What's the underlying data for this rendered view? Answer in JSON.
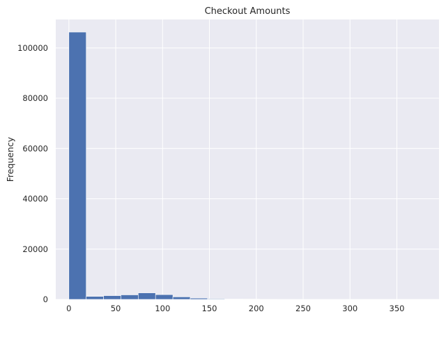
{
  "chart_data": {
    "type": "bar",
    "title": "Checkout Amounts",
    "xlabel": "",
    "ylabel": "Frequency",
    "grid": true,
    "xlim": [
      -14,
      395
    ],
    "ylim": [
      0,
      111300
    ],
    "xticks": [
      0,
      50,
      100,
      150,
      200,
      250,
      300,
      350
    ],
    "yticks": [
      0,
      20000,
      40000,
      60000,
      80000,
      100000
    ],
    "bins": [
      {
        "x0": 0,
        "x1": 18.5,
        "value": 106300
      },
      {
        "x0": 18.5,
        "x1": 37,
        "value": 1200
      },
      {
        "x0": 37,
        "x1": 55.5,
        "value": 1500
      },
      {
        "x0": 55.5,
        "x1": 74,
        "value": 1800
      },
      {
        "x0": 74,
        "x1": 92.5,
        "value": 2600
      },
      {
        "x0": 92.5,
        "x1": 111,
        "value": 1900
      },
      {
        "x0": 111,
        "x1": 129.5,
        "value": 1000
      },
      {
        "x0": 129.5,
        "x1": 148,
        "value": 500
      },
      {
        "x0": 148,
        "x1": 166.5,
        "value": 250
      },
      {
        "x0": 166.5,
        "x1": 185,
        "value": 150
      },
      {
        "x0": 185,
        "x1": 203.5,
        "value": 100
      },
      {
        "x0": 203.5,
        "x1": 222,
        "value": 60
      },
      {
        "x0": 222,
        "x1": 240.5,
        "value": 40
      },
      {
        "x0": 240.5,
        "x1": 259,
        "value": 30
      },
      {
        "x0": 259,
        "x1": 277.5,
        "value": 20
      },
      {
        "x0": 277.5,
        "x1": 296,
        "value": 15
      },
      {
        "x0": 296,
        "x1": 314.5,
        "value": 10
      },
      {
        "x0": 314.5,
        "x1": 333,
        "value": 8
      },
      {
        "x0": 333,
        "x1": 351.5,
        "value": 5
      },
      {
        "x0": 351.5,
        "x1": 370,
        "value": 3
      },
      {
        "x0": 370,
        "x1": 380,
        "value": 2
      }
    ],
    "colors": {
      "bar": "#4c72b0",
      "background": "#eaeaf2",
      "grid": "#ffffff"
    }
  }
}
